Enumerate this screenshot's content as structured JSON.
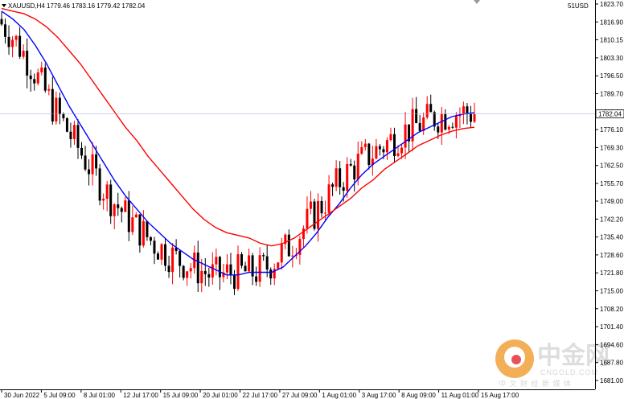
{
  "chart_data": {
    "type": "candlestick",
    "symbol_header": "XAUUSD,H4  1779.46 1783.16 1779.42 1782.04",
    "corner_label": "51USD",
    "last_price": 1782.04,
    "last_price_label": "1782.04",
    "ylim": [
      1681.0,
      1823.7
    ],
    "y_ticks": [
      "1823.70",
      "1816.90",
      "1810.15",
      "1803.30",
      "1796.50",
      "1789.70",
      "1782.90",
      "1776.10",
      "1769.30",
      "1762.50",
      "1755.70",
      "1749.00",
      "1742.20",
      "1735.40",
      "1728.60",
      "1721.80",
      "1715.00",
      "1708.20",
      "1701.40",
      "1694.60",
      "1687.80",
      "1681.00"
    ],
    "x_ticks": [
      "30 Jun 2022",
      "5 Jul 09:00",
      "8 Jul 01:00",
      "12 Jul 17:00",
      "15 Jul 09:00",
      "20 Jul 01:00",
      "22 Jul 17:00",
      "27 Jul 09:00",
      "1 Aug 01:00",
      "3 Aug 17:00",
      "8 Aug 09:00",
      "11 Aug 01:00",
      "15 Aug 17:00"
    ],
    "up_color": "#ff0000",
    "down_color": "#000000",
    "series": [
      {
        "name": "",
        "color": "#0000ff",
        "values": [
          1821,
          1818,
          1814,
          1808,
          1801,
          1793,
          1785,
          1778,
          1771,
          1764,
          1757,
          1751,
          1746,
          1741,
          1737,
          1733,
          1730,
          1727,
          1725,
          1723,
          1721,
          1721,
          1722,
          1722,
          1722,
          1724,
          1728,
          1732,
          1737,
          1743,
          1748,
          1754,
          1759,
          1763,
          1766,
          1769,
          1772,
          1775,
          1777,
          1779,
          1781,
          1782,
          1782.5
        ]
      },
      {
        "name": "",
        "color": "#ff0000",
        "values": [
          1822,
          1821,
          1820,
          1818,
          1815,
          1811,
          1806,
          1801,
          1795,
          1789,
          1783,
          1777,
          1772,
          1766,
          1761,
          1756,
          1751,
          1746,
          1742,
          1739,
          1737,
          1736,
          1735,
          1733,
          1732,
          1733,
          1735,
          1738,
          1741,
          1744,
          1747,
          1750,
          1754,
          1757,
          1761,
          1764,
          1767,
          1770,
          1772,
          1774,
          1775.5,
          1776.5,
          1777
        ]
      }
    ],
    "watermark": {
      "brand": "中金网",
      "site": "CNGOLD.COM",
      "slogan": "中 文 财 经 新 媒 体"
    }
  }
}
